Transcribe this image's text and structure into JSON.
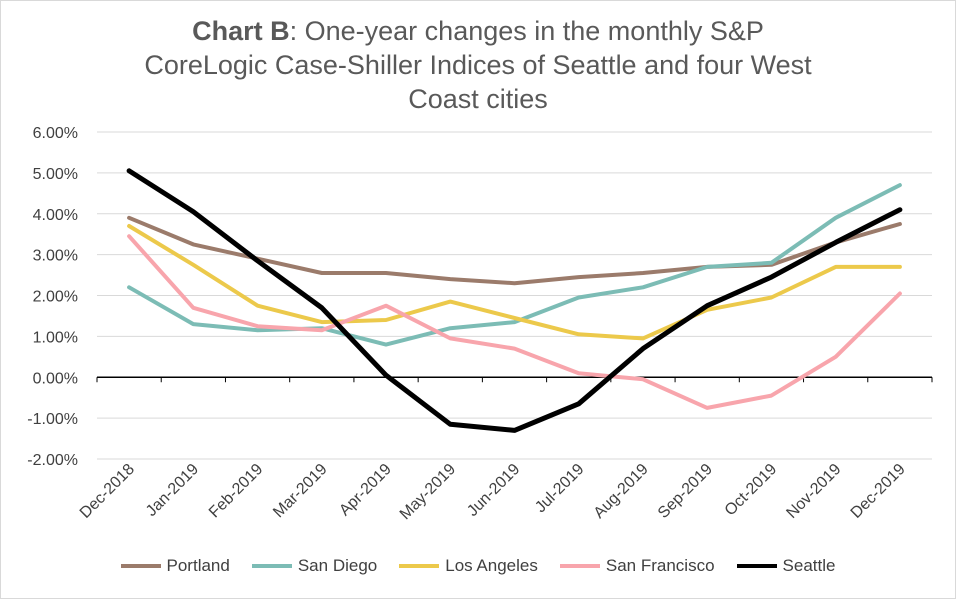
{
  "chart_data": {
    "type": "line",
    "title_bold": "Chart B",
    "title_rest": ": One-year changes in the monthly S&P CoreLogic Case-Shiller Indices of Seattle and four West Coast cities",
    "categories": [
      "Dec-2018",
      "Jan-2019",
      "Feb-2019",
      "Mar-2019",
      "Apr-2019",
      "May-2019",
      "Jun-2019",
      "Jul-2019",
      "Aug-2019",
      "Sep-2019",
      "Oct-2019",
      "Nov-2019",
      "Dec-2019"
    ],
    "y_ticks": [
      "6.00%",
      "5.00%",
      "4.00%",
      "3.00%",
      "2.00%",
      "1.00%",
      "0.00%",
      "-1.00%",
      "-2.00%"
    ],
    "ylim": [
      -2,
      6
    ],
    "grid": true,
    "legend_position": "bottom",
    "series": [
      {
        "name": "Portland",
        "color": "#9b7b6b",
        "width": 4,
        "values": [
          3.9,
          3.25,
          2.9,
          2.55,
          2.55,
          2.4,
          2.3,
          2.45,
          2.55,
          2.7,
          2.75,
          3.3,
          3.75
        ]
      },
      {
        "name": "San Diego",
        "color": "#7cbcb5",
        "width": 4,
        "values": [
          2.2,
          1.3,
          1.15,
          1.2,
          0.8,
          1.2,
          1.35,
          1.95,
          2.2,
          2.7,
          2.8,
          3.9,
          4.7
        ]
      },
      {
        "name": "Los Angeles",
        "color": "#ecc94b",
        "width": 4,
        "values": [
          3.7,
          2.75,
          1.75,
          1.35,
          1.4,
          1.85,
          1.45,
          1.05,
          0.95,
          1.65,
          1.95,
          2.7,
          2.7
        ]
      },
      {
        "name": "San Francisco",
        "color": "#f8a5ac",
        "width": 4,
        "values": [
          3.45,
          1.7,
          1.25,
          1.15,
          1.75,
          0.95,
          0.7,
          0.1,
          -0.05,
          -0.75,
          -0.45,
          0.5,
          2.05
        ]
      },
      {
        "name": "Seattle",
        "color": "#000000",
        "width": 5,
        "values": [
          5.05,
          4.05,
          2.85,
          1.7,
          0.05,
          -1.15,
          -1.3,
          -0.65,
          0.7,
          1.75,
          2.45,
          3.3,
          4.1
        ]
      }
    ]
  }
}
